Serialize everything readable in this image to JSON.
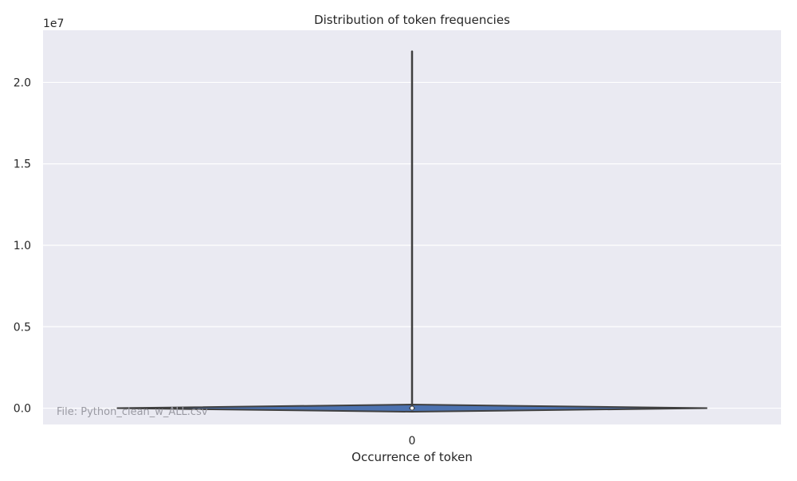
{
  "chart_data": {
    "type": "violin",
    "title": "Distribution of token frequencies",
    "xlabel": "Occurrence of token",
    "ylabel": "",
    "categories": [
      "0"
    ],
    "axis_offset_label": "1e7",
    "y_ticks": [
      0.0,
      0.5,
      1.0,
      1.5,
      2.0
    ],
    "y_tick_labels": [
      "0.0",
      "0.5",
      "1.0",
      "1.5",
      "2.0"
    ],
    "ylim": [
      -0.1,
      2.32
    ],
    "y_unit_multiplier": 10000000,
    "distribution": {
      "min": 0.0,
      "q1": 0.0,
      "median": 0.0,
      "q3": 0.0,
      "max": 2.19,
      "kde_peak": 0.0
    },
    "grid": true,
    "legend": "none",
    "colors": {
      "background": "#eaeaf2",
      "grid": "#ffffff",
      "violin_fill": "#4c72b0",
      "outline": "#3f3f3f"
    }
  },
  "annotation": {
    "file_label": "File: Python_clean_w_ALL.csv"
  }
}
